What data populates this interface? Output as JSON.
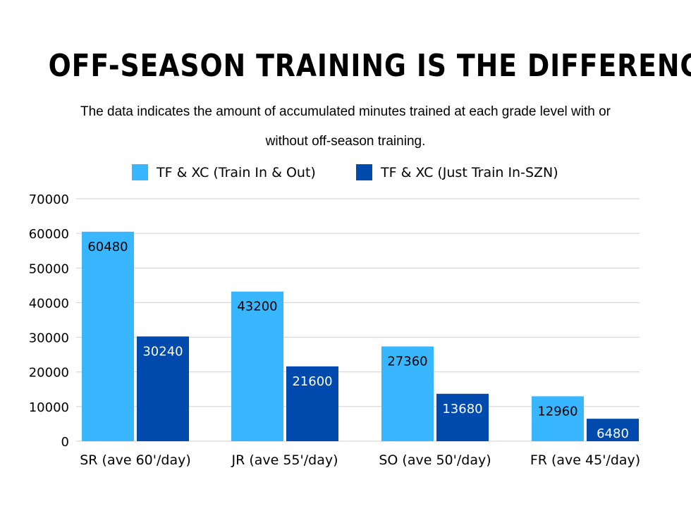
{
  "chart_data": {
    "type": "bar",
    "title": "OFF-SEASON TRAINING IS THE DIFFERENCE",
    "subtitle": "The data indicates the amount of accumulated minutes trained at each grade level with or without off-season training.",
    "categories": [
      "SR (ave 60'/day)",
      "JR (ave 55'/day)",
      "SO (ave 50'/day)",
      "FR (ave 45'/day)"
    ],
    "series": [
      {
        "name": "TF & XC (Train In & Out)",
        "values": [
          60480,
          43200,
          27360,
          12960
        ],
        "color": "#38b6ff",
        "label_color": "#000000"
      },
      {
        "name": "TF & XC (Just Train In-SZN)",
        "values": [
          30240,
          21600,
          13680,
          6480
        ],
        "color": "#004aad",
        "label_color": "#ffffff"
      }
    ],
    "ylim": [
      0,
      70000
    ],
    "yticks": [
      0,
      10000,
      20000,
      30000,
      40000,
      50000,
      60000,
      70000
    ],
    "grid": true,
    "legend_position": "top"
  }
}
